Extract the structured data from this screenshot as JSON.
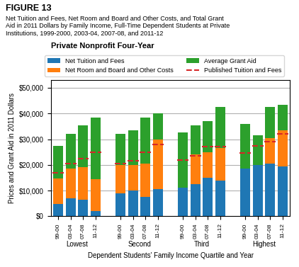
{
  "chart_data": {
    "type": "bar",
    "stacked": true,
    "figure_label": "FIGURE 13",
    "subtitle": "Net Tuition and Fees, Net Room and Board and Other Costs, and Total Grant\nAid in 2011 Dollars by Family Income, Full-Time Dependent Students at Private\nInstitutions, 1999-2000, 2003-04, 2007-08, and 2011-12",
    "title": "Private Nonprofit Four-Year",
    "xlabel": "Dependent Students' Family Income Quartile and Year",
    "ylabel": "Prices and Grant Aid in 2011 Dollars",
    "groups": [
      "Lowest",
      "Second",
      "Third",
      "Highest"
    ],
    "categories": [
      "99-00",
      "03-04",
      "07-08",
      "11-12"
    ],
    "series": [
      {
        "name": "Net Tuition and Fees",
        "type": "bar",
        "values": [
          [
            4800,
            7000,
            6500,
            2000
          ],
          [
            9000,
            10000,
            7500,
            10500
          ],
          [
            11000,
            12500,
            15000,
            14000
          ],
          [
            18500,
            20000,
            20500,
            19500
          ]
        ]
      },
      {
        "name": "Net Room and Board and Other Costs",
        "type": "bar",
        "values": [
          [
            10000,
            11500,
            12500,
            12500
          ],
          [
            11000,
            10000,
            13000,
            19500
          ],
          [
            0,
            11500,
            10000,
            12500
          ],
          [
            0,
            0,
            10000,
            14000
          ]
        ]
      },
      {
        "name": "Average Grant Aid",
        "type": "bar",
        "values": [
          [
            12500,
            13500,
            16500,
            24000
          ],
          [
            12000,
            13500,
            18000,
            10000
          ],
          [
            21500,
            11500,
            12000,
            16000
          ],
          [
            17500,
            11500,
            12000,
            10000
          ]
        ]
      },
      {
        "name": "Published Tuition and Fees",
        "type": "line",
        "line_style": "dashed",
        "values": [
          [
            17000,
            20500,
            22500,
            25000
          ],
          [
            20500,
            21500,
            25000,
            28000
          ],
          [
            22000,
            23500,
            27000,
            27000
          ],
          [
            24500,
            27500,
            29000,
            32000
          ]
        ]
      }
    ],
    "ylim": [
      0,
      53000
    ],
    "yticks": [
      {
        "value": 0,
        "label": "$0"
      },
      {
        "value": 10000,
        "label": "$10,000"
      },
      {
        "value": 20000,
        "label": "$20,000"
      },
      {
        "value": 30000,
        "label": "$30,000"
      },
      {
        "value": 40000,
        "label": "$40,000"
      },
      {
        "value": 50000,
        "label": "$50,000"
      }
    ],
    "grid": true,
    "legend": "upper center"
  }
}
